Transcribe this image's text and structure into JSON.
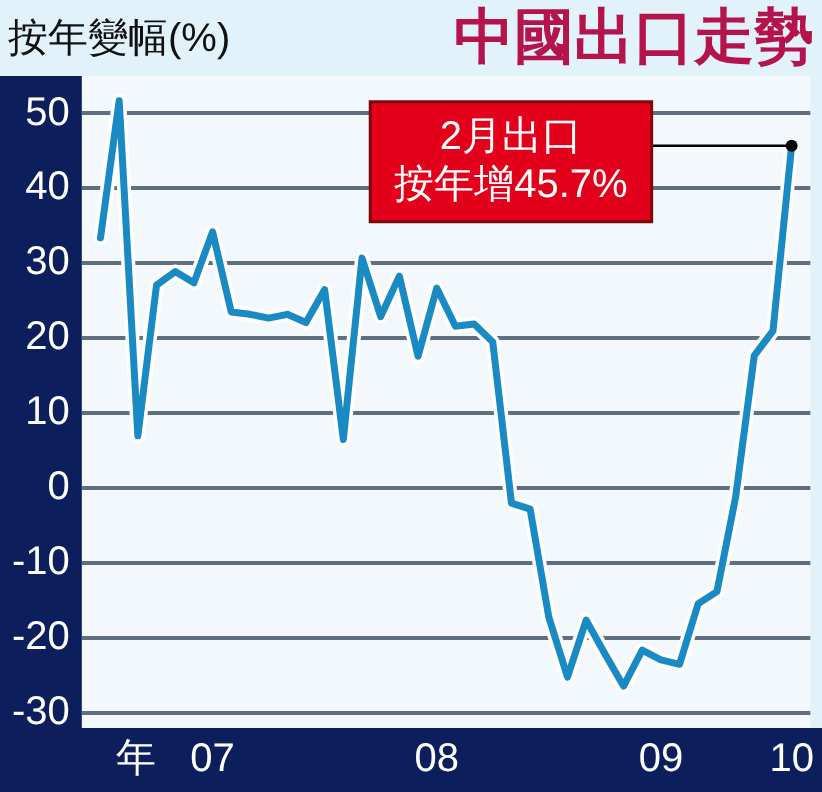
{
  "chart_data": {
    "type": "line",
    "title": "中國出口走勢",
    "ylabel": "按年變幅(%)",
    "xlabel": "年",
    "x": [
      "2007-01",
      "2007-02",
      "2007-03",
      "2007-04",
      "2007-05",
      "2007-06",
      "2007-07",
      "2007-08",
      "2007-09",
      "2007-10",
      "2007-11",
      "2007-12",
      "2008-01",
      "2008-02",
      "2008-03",
      "2008-04",
      "2008-05",
      "2008-06",
      "2008-07",
      "2008-08",
      "2008-09",
      "2008-10",
      "2008-11",
      "2008-12",
      "2009-01",
      "2009-02",
      "2009-03",
      "2009-04",
      "2009-05",
      "2009-06",
      "2009-07",
      "2009-08",
      "2009-09",
      "2009-10",
      "2009-11",
      "2009-12",
      "2010-01",
      "2010-02"
    ],
    "series": [
      {
        "color": "#1a8ac4",
        "values": [
          33.4,
          51.7,
          7.0,
          27.1,
          28.9,
          27.4,
          34.2,
          23.5,
          23.2,
          22.7,
          23.2,
          22.1,
          26.5,
          6.5,
          30.7,
          22.9,
          28.3,
          17.6,
          26.7,
          21.6,
          21.9,
          19.5,
          -2.0,
          -2.8,
          -17.2,
          -25.2,
          -17.6,
          -22.1,
          -26.4,
          -21.6,
          -22.9,
          -23.5,
          -15.4,
          -13.8,
          -1.2,
          17.7,
          21.0,
          45.7
        ]
      }
    ],
    "xlim": [
      "2006-12",
      "2010-03"
    ],
    "xticks": [
      {
        "value": "2007-07",
        "label": "07"
      },
      {
        "value": "2008-07",
        "label": "08"
      },
      {
        "value": "2009-07",
        "label": "09"
      },
      {
        "value": "2010-02",
        "label": "10"
      }
    ],
    "ylim": [
      -32,
      55
    ],
    "yticks": [
      -30,
      -20,
      -10,
      0,
      10,
      20,
      30,
      40,
      50
    ],
    "grid": "y",
    "legend": false,
    "marker": "none",
    "line_style": "solid",
    "annotations": [
      "2月出口",
      {
        "text": "按年增45.7%",
        "x": "2010-02",
        "y": 45.7
      }
    ]
  }
}
